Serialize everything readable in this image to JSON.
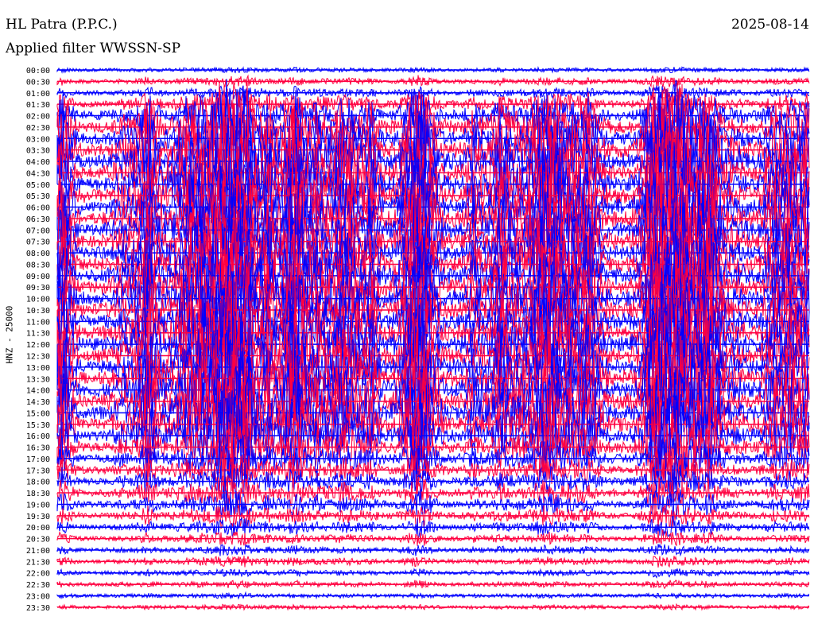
{
  "header": {
    "station": "HL Patra (P.P.C.)",
    "date": "2025-08-14",
    "filter": "Applied filter WWSSN-SP"
  },
  "chart_data": {
    "type": "line",
    "title": "HL Patra (P.P.C.)",
    "subtitle": "Applied filter WWSSN-SP",
    "date": "2025-08-14",
    "ylabel": "HNZ - 25000",
    "row_labels": [
      "00:00",
      "00:30",
      "01:00",
      "01:30",
      "02:00",
      "02:30",
      "03:00",
      "03:30",
      "04:00",
      "04:30",
      "05:00",
      "05:30",
      "06:00",
      "06:30",
      "07:00",
      "07:30",
      "08:00",
      "08:30",
      "09:00",
      "09:30",
      "10:00",
      "10:30",
      "11:00",
      "11:30",
      "12:00",
      "12:30",
      "13:00",
      "13:30",
      "14:00",
      "14:30",
      "15:00",
      "15:30",
      "16:00",
      "16:30",
      "17:00",
      "17:30",
      "18:00",
      "18:30",
      "19:00",
      "19:30",
      "20:00",
      "20:30",
      "21:00",
      "21:30",
      "22:00",
      "22:30",
      "23:00",
      "23:30"
    ],
    "row_activity": [
      0.15,
      0.25,
      0.3,
      0.5,
      0.7,
      0.85,
      0.9,
      1.0,
      1.0,
      1.0,
      1.0,
      1.0,
      1.0,
      1.0,
      1.0,
      1.0,
      1.0,
      1.0,
      1.0,
      1.0,
      1.0,
      1.0,
      1.0,
      1.0,
      1.0,
      1.0,
      1.0,
      1.0,
      1.0,
      1.0,
      1.0,
      0.95,
      0.85,
      0.75,
      0.65,
      0.55,
      0.5,
      0.5,
      0.45,
      0.4,
      0.35,
      0.3,
      0.25,
      0.25,
      0.2,
      0.2,
      0.15,
      0.15
    ],
    "series_colors": [
      "#0000ff",
      "#ff0040"
    ],
    "grid": false
  }
}
